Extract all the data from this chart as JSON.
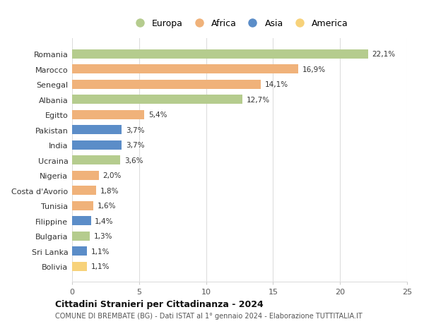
{
  "countries": [
    "Romania",
    "Marocco",
    "Senegal",
    "Albania",
    "Egitto",
    "Pakistan",
    "India",
    "Ucraina",
    "Nigeria",
    "Costa d'Avorio",
    "Tunisia",
    "Filippine",
    "Bulgaria",
    "Sri Lanka",
    "Bolivia"
  ],
  "values": [
    22.1,
    16.9,
    14.1,
    12.7,
    5.4,
    3.7,
    3.7,
    3.6,
    2.0,
    1.8,
    1.6,
    1.4,
    1.3,
    1.1,
    1.1
  ],
  "labels": [
    "22,1%",
    "16,9%",
    "14,1%",
    "12,7%",
    "5,4%",
    "3,7%",
    "3,7%",
    "3,6%",
    "2,0%",
    "1,8%",
    "1,6%",
    "1,4%",
    "1,3%",
    "1,1%",
    "1,1%"
  ],
  "continent": [
    "Europa",
    "Africa",
    "Africa",
    "Europa",
    "Africa",
    "Asia",
    "Asia",
    "Europa",
    "Africa",
    "Africa",
    "Africa",
    "Asia",
    "Europa",
    "Asia",
    "America"
  ],
  "colors": {
    "Europa": "#b5cc8e",
    "Africa": "#f0b27a",
    "Asia": "#5b8dc8",
    "America": "#f7d27a"
  },
  "xlim": [
    0,
    25
  ],
  "xticks": [
    0,
    5,
    10,
    15,
    20,
    25
  ],
  "title": "Cittadini Stranieri per Cittadinanza - 2024",
  "subtitle": "COMUNE DI BREMBATE (BG) - Dati ISTAT al 1° gennaio 2024 - Elaborazione TUTTITALIA.IT",
  "background_color": "#ffffff",
  "grid_color": "#dddddd",
  "legend_order": [
    "Europa",
    "Africa",
    "Asia",
    "America"
  ]
}
